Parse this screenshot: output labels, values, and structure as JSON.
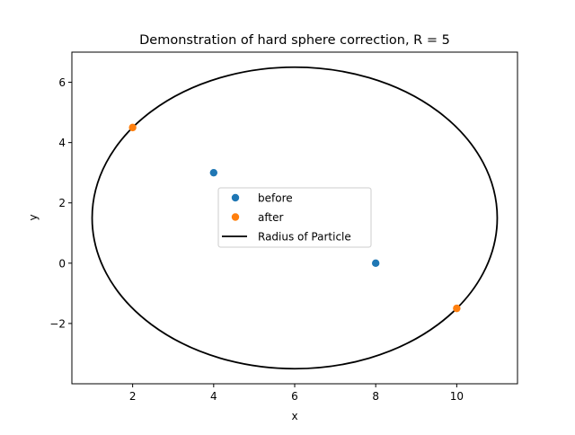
{
  "chart_data": {
    "type": "scatter",
    "title": "Demonstration of hard sphere correction, R = 5",
    "xlabel": "x",
    "ylabel": "y",
    "xlim": [
      0.5,
      11.5
    ],
    "ylim": [
      -4.0,
      7.0
    ],
    "xticks": [
      2,
      4,
      6,
      8,
      10
    ],
    "yticks": [
      -2,
      0,
      2,
      4,
      6
    ],
    "xtick_labels": [
      "2",
      "4",
      "6",
      "8",
      "10"
    ],
    "ytick_labels": [
      "−2",
      "0",
      "2",
      "4",
      "6"
    ],
    "grid": false,
    "legend_position": "center",
    "series": [
      {
        "name": "before",
        "kind": "scatter",
        "color": "#1f77b4",
        "points": [
          [
            4,
            3
          ],
          [
            8,
            0
          ]
        ]
      },
      {
        "name": "after",
        "kind": "scatter",
        "color": "#ff7f0e",
        "points": [
          [
            2,
            4.5
          ],
          [
            10,
            -1.5
          ]
        ]
      },
      {
        "name": "Radius of Particle",
        "kind": "circle",
        "color": "#000000",
        "center": [
          6,
          1.5
        ],
        "radius": 5
      }
    ]
  }
}
